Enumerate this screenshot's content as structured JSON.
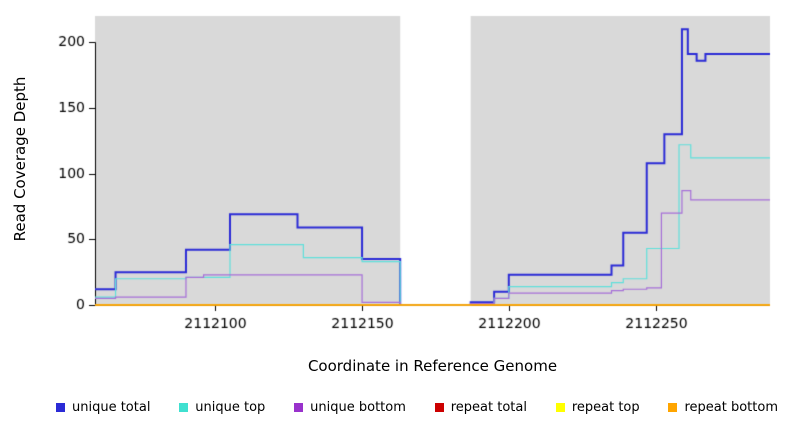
{
  "chart_data": {
    "type": "line",
    "subtype": "step",
    "title": "",
    "xlabel": "Coordinate in Reference Genome",
    "ylabel": "Read Coverage Depth",
    "xlim": [
      2112059,
      2112289
    ],
    "ylim": [
      0,
      220
    ],
    "x_ticks": [
      2112100,
      2112150,
      2112200,
      2112250
    ],
    "y_ticks": [
      0,
      50,
      100,
      150,
      200
    ],
    "grid": false,
    "legend_position": "bottom",
    "shaded_regions": {
      "color": "#d9d9d9",
      "ranges": [
        [
          2112059,
          2112163
        ],
        [
          2112187,
          2112289
        ]
      ]
    },
    "series": [
      {
        "name": "unique total",
        "color": "#2b2bd6",
        "width": 2,
        "points": [
          [
            2112059,
            12
          ],
          [
            2112066,
            25
          ],
          [
            2112090,
            42
          ],
          [
            2112105,
            69
          ],
          [
            2112128,
            59
          ],
          [
            2112150,
            35
          ],
          [
            2112163,
            0
          ],
          [
            2112187,
            2
          ],
          [
            2112195,
            10
          ],
          [
            2112200,
            23
          ],
          [
            2112235,
            30
          ],
          [
            2112239,
            55
          ],
          [
            2112247,
            108
          ],
          [
            2112253,
            130
          ],
          [
            2112259,
            210
          ],
          [
            2112261,
            191
          ],
          [
            2112264,
            186
          ],
          [
            2112267,
            191
          ]
        ]
      },
      {
        "name": "unique top",
        "color": "#5fe0db",
        "width": 1.2,
        "points": [
          [
            2112059,
            6
          ],
          [
            2112066,
            20
          ],
          [
            2112090,
            21
          ],
          [
            2112105,
            46
          ],
          [
            2112130,
            36
          ],
          [
            2112150,
            33
          ],
          [
            2112163,
            0
          ],
          [
            2112187,
            1
          ],
          [
            2112195,
            5
          ],
          [
            2112200,
            14
          ],
          [
            2112235,
            17
          ],
          [
            2112239,
            20
          ],
          [
            2112247,
            43
          ],
          [
            2112258,
            122
          ],
          [
            2112262,
            112
          ]
        ]
      },
      {
        "name": "unique bottom",
        "color": "#a66fd8",
        "width": 1.2,
        "points": [
          [
            2112059,
            5
          ],
          [
            2112066,
            6
          ],
          [
            2112090,
            21
          ],
          [
            2112096,
            23
          ],
          [
            2112150,
            2
          ],
          [
            2112163,
            0
          ],
          [
            2112187,
            1
          ],
          [
            2112195,
            5
          ],
          [
            2112200,
            9
          ],
          [
            2112235,
            11
          ],
          [
            2112239,
            12
          ],
          [
            2112247,
            13
          ],
          [
            2112252,
            70
          ],
          [
            2112259,
            87
          ],
          [
            2112262,
            80
          ]
        ]
      },
      {
        "name": "repeat total",
        "color": "#cc0000",
        "width": 1.2,
        "points": [
          [
            2112059,
            0
          ]
        ]
      },
      {
        "name": "repeat top",
        "color": "#ffff00",
        "width": 1.2,
        "points": [
          [
            2112059,
            0
          ]
        ]
      },
      {
        "name": "repeat bottom",
        "color": "#ffa500",
        "width": 1.5,
        "points": [
          [
            2112059,
            0
          ]
        ]
      }
    ],
    "legend": [
      {
        "label": "unique total",
        "color": "#2b2bd6"
      },
      {
        "label": "unique top",
        "color": "#40e0d0"
      },
      {
        "label": "unique bottom",
        "color": "#9932cc"
      },
      {
        "label": "repeat total",
        "color": "#cc0000"
      },
      {
        "label": "repeat top",
        "color": "#ffff00"
      },
      {
        "label": "repeat bottom",
        "color": "#ffa500"
      }
    ]
  }
}
